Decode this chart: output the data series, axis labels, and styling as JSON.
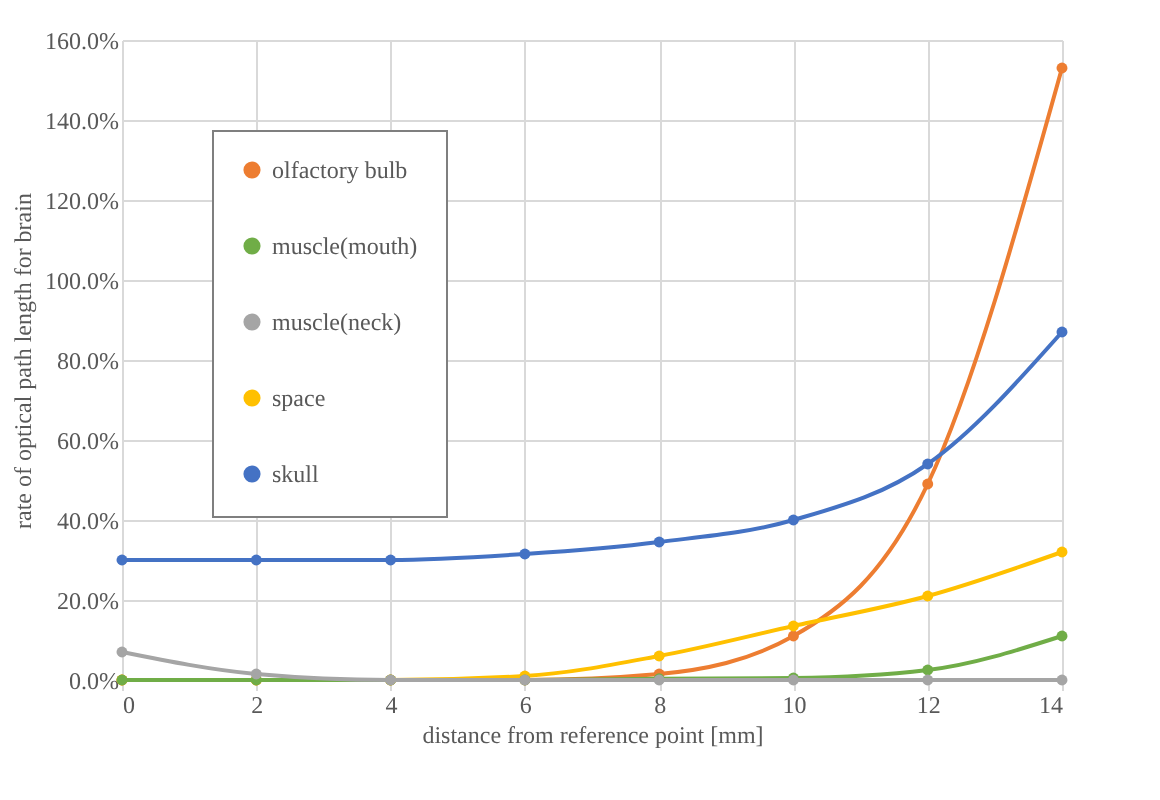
{
  "chart_data": {
    "type": "line",
    "xlabel": "distance from reference point [mm]",
    "ylabel": "rate of optical path length  for brain",
    "x": [
      0,
      2,
      4,
      6,
      8,
      10,
      12,
      14
    ],
    "series": [
      {
        "name": "olfactory bulb",
        "color": "#ed7d31",
        "values": [
          0,
          0,
          0,
          0,
          1.5,
          11,
          49,
          153
        ]
      },
      {
        "name": "muscle(mouth)",
        "color": "#70ad47",
        "values": [
          0,
          0,
          0,
          0,
          0.3,
          0.5,
          2.5,
          11
        ]
      },
      {
        "name": "muscle(neck)",
        "color": "#a5a5a5",
        "values": [
          7,
          1.5,
          0,
          0,
          0,
          0,
          0,
          0
        ]
      },
      {
        "name": "space",
        "color": "#ffc000",
        "values": [
          0,
          0,
          0,
          1,
          6,
          13.5,
          21,
          32
        ]
      },
      {
        "name": "skull",
        "color": "#4472c4",
        "values": [
          30,
          30,
          30,
          31.5,
          34.5,
          40,
          54,
          87
        ]
      }
    ],
    "xlim": [
      0,
      14
    ],
    "xticks": [
      0,
      2,
      4,
      6,
      8,
      10,
      12,
      14
    ],
    "ylim": [
      0,
      160
    ],
    "yticks": [
      {
        "value": 0,
        "label": "0.0%"
      },
      {
        "value": 20,
        "label": "20.0%"
      },
      {
        "value": 40,
        "label": "40.0%"
      },
      {
        "value": 60,
        "label": "60.0%"
      },
      {
        "value": 80,
        "label": "80.0%"
      },
      {
        "value": 100,
        "label": "100.0%"
      },
      {
        "value": 120,
        "label": "120.0%"
      },
      {
        "value": 140,
        "label": "140.0%"
      },
      {
        "value": 160,
        "label": "160.0%"
      }
    ],
    "grid": true,
    "legend": "top left",
    "marker": "circle",
    "line_style": "solid"
  }
}
